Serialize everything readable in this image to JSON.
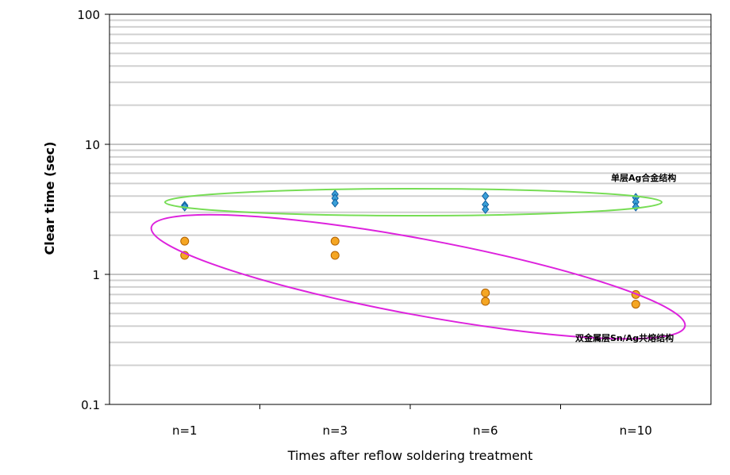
{
  "chart_data": {
    "type": "scatter",
    "title": "",
    "xlabel": "Times after reflow soldering treatment",
    "ylabel": "Clear time (sec)",
    "yscale": "log",
    "ylim": [
      0.1,
      100
    ],
    "yticks": [
      "0.1",
      "1",
      "10",
      "100"
    ],
    "categories": [
      "n=1",
      "n=3",
      "n=6",
      "n=10"
    ],
    "grid": true,
    "series": [
      {
        "marker": "diamond",
        "color": "#3aa0d8",
        "points": [
          [
            0,
            3.39
          ],
          [
            0,
            3.3
          ],
          [
            1,
            4.13
          ],
          [
            1,
            3.85
          ],
          [
            1,
            3.54
          ],
          [
            2,
            4.0
          ],
          [
            2,
            3.44
          ],
          [
            2,
            3.16
          ],
          [
            3,
            3.9
          ],
          [
            3,
            3.6
          ],
          [
            3,
            3.3
          ]
        ]
      },
      {
        "marker": "circle",
        "color": "#f5a623",
        "points": [
          [
            0,
            1.8
          ],
          [
            0,
            1.4
          ],
          [
            1,
            1.8
          ],
          [
            1,
            1.4
          ],
          [
            2,
            0.72
          ],
          [
            2,
            0.62
          ],
          [
            3,
            0.7
          ],
          [
            3,
            0.59
          ]
        ]
      }
    ],
    "annotations": [
      {
        "text": "单层Ag合金结构",
        "color": "#66dd44"
      },
      {
        "text": "双金属层Sn/Ag共熔结构",
        "color": "#dd22dd"
      }
    ]
  }
}
